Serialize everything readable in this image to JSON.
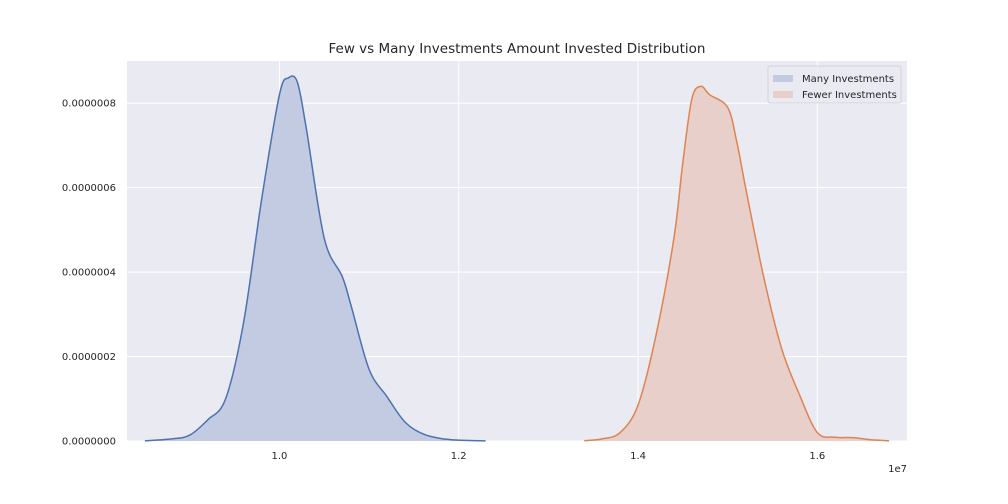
{
  "chart_data": {
    "type": "area",
    "title": "Few vs Many Investments Amount Invested Distribution",
    "xlabel": "",
    "ylabel": "",
    "x_scale_label": "1e7",
    "xlim": [
      0.83,
      1.7
    ],
    "ylim": [
      0,
      9e-07
    ],
    "x_ticks": [
      1.0,
      1.2,
      1.4,
      1.6
    ],
    "x_tick_labels": [
      "1.0",
      "1.2",
      "1.4",
      "1.6"
    ],
    "y_ticks": [
      0,
      2e-07,
      4e-07,
      6e-07,
      8e-07
    ],
    "y_tick_labels": [
      "0.0000000",
      "0.0000002",
      "0.0000004",
      "0.0000006",
      "0.0000008"
    ],
    "grid": true,
    "legend_position": "top-right",
    "colors": {
      "background": "#eaeaf2",
      "grid": "#ffffff",
      "many_line": "#4c72b0",
      "many_fill": "#c3cbe3",
      "fewer_line": "#dd8452",
      "fewer_fill": "#e8cfc9"
    },
    "series": [
      {
        "name": "Many Investments",
        "color_key": "many",
        "x": [
          0.85,
          0.88,
          0.9,
          0.92,
          0.94,
          0.96,
          0.98,
          1.0,
          1.01,
          1.02,
          1.03,
          1.05,
          1.07,
          1.08,
          1.1,
          1.12,
          1.14,
          1.16,
          1.18,
          1.2,
          1.23
        ],
        "y": [
          5e-10,
          5e-09,
          1.4e-08,
          5e-08,
          1e-07,
          2.8e-07,
          5.7e-07,
          8.2e-07,
          8.6e-07,
          8.5e-07,
          7.4e-07,
          4.8e-07,
          3.9e-07,
          3.2e-07,
          1.7e-07,
          1.05e-07,
          4.5e-08,
          1.7e-08,
          6e-09,
          2e-09,
          3e-10
        ]
      },
      {
        "name": "Fewer Investments",
        "color_key": "fewer",
        "x": [
          1.34,
          1.36,
          1.38,
          1.4,
          1.42,
          1.44,
          1.45,
          1.46,
          1.47,
          1.48,
          1.5,
          1.51,
          1.52,
          1.54,
          1.56,
          1.58,
          1.6,
          1.62,
          1.64,
          1.66,
          1.68
        ],
        "y": [
          8e-10,
          5e-09,
          2e-08,
          8.5e-08,
          2.5e-07,
          4.8e-07,
          6.6e-07,
          8.1e-07,
          8.4e-07,
          8.2e-07,
          7.9e-07,
          7.1e-07,
          6e-07,
          3.9e-07,
          2.2e-07,
          1.1e-07,
          2e-08,
          9e-09,
          8e-09,
          3e-09,
          4e-10
        ]
      }
    ]
  }
}
